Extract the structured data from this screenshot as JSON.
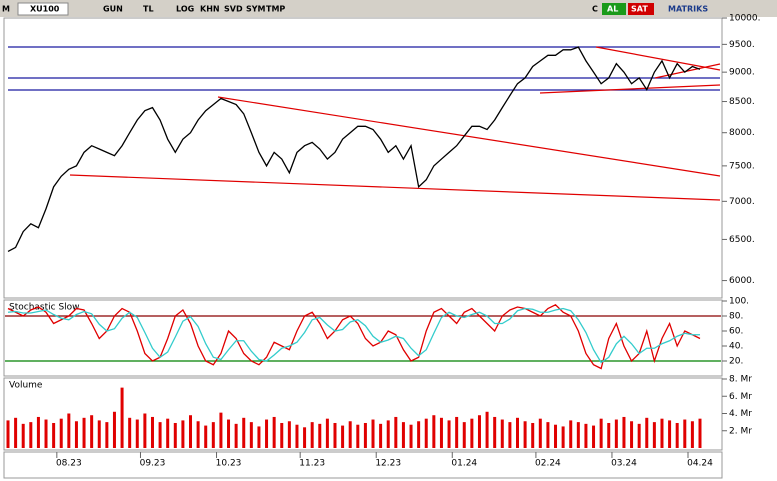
{
  "toolbar": {
    "items": [
      "M",
      "XU100",
      "GUN",
      "TL",
      "LOG",
      "KHN",
      "SVD",
      "SYM",
      "TMP",
      "C",
      "AL",
      "SAT",
      "MATRIKS"
    ]
  },
  "chart_data": [
    {
      "type": "line",
      "log_scale": true,
      "color": "#000000",
      "categories": [
        null,
        null,
        null,
        null,
        null,
        null,
        null,
        null,
        "08.23",
        null,
        null,
        null,
        null,
        null,
        null,
        null,
        null,
        null,
        null,
        "09.23",
        null,
        null,
        null,
        null,
        null,
        null,
        null,
        null,
        null,
        "10.23",
        null,
        null,
        null,
        null,
        null,
        null,
        null,
        null,
        null,
        null,
        "11.23",
        null,
        null,
        null,
        null,
        null,
        null,
        null,
        null,
        null,
        "12.23",
        null,
        null,
        null,
        null,
        null,
        null,
        null,
        null,
        null,
        "01.24",
        null,
        null,
        null,
        null,
        null,
        null,
        null,
        null,
        null,
        null,
        "02.24",
        null,
        null,
        null,
        null,
        null,
        null,
        null,
        null,
        null,
        "03.24",
        null,
        null,
        null,
        null,
        null,
        null,
        null,
        null,
        null,
        "04.24"
      ],
      "values": [
        6350,
        6400,
        6600,
        6700,
        6650,
        6900,
        7200,
        7350,
        7450,
        7500,
        7700,
        7800,
        7750,
        7700,
        7650,
        7800,
        8000,
        8200,
        8350,
        8400,
        8200,
        7900,
        7700,
        7900,
        8000,
        8200,
        8350,
        8450,
        8550,
        8500,
        8450,
        8300,
        8000,
        7700,
        7500,
        7700,
        7600,
        7400,
        7700,
        7800,
        7850,
        7750,
        7600,
        7700,
        7900,
        8000,
        8100,
        8100,
        8050,
        7900,
        7700,
        7800,
        7600,
        7800,
        7200,
        7300,
        7500,
        7600,
        7700,
        7800,
        7950,
        8100,
        8100,
        8050,
        8200,
        8400,
        8600,
        8800,
        8900,
        9100,
        9200,
        9300,
        9300,
        9400,
        9400,
        9450,
        9200,
        9000,
        8800,
        8900,
        9150,
        9000,
        8800,
        8900,
        8700,
        9000,
        9200,
        8900,
        9150,
        9000,
        9100,
        9050
      ],
      "ylim": [
        5800,
        10000
      ],
      "yticks": [
        {
          "value": 6000,
          "label": "6000."
        },
        {
          "value": 6500,
          "label": "6500."
        },
        {
          "value": 7000,
          "label": "7000."
        },
        {
          "value": 7500,
          "label": "7500."
        },
        {
          "value": 8000,
          "label": "8000."
        },
        {
          "value": 8500,
          "label": "8500."
        },
        {
          "value": 9000,
          "label": "9000."
        },
        {
          "value": 9500,
          "label": "9500."
        },
        {
          "value": 10000,
          "label": "10000."
        }
      ]
    },
    {
      "type": "line",
      "title": "Stochastic Slow",
      "series": [
        {
          "color": "#e00000",
          "values": [
            90,
            85,
            80,
            88,
            92,
            85,
            70,
            75,
            80,
            90,
            88,
            70,
            50,
            60,
            80,
            90,
            85,
            60,
            30,
            20,
            25,
            50,
            80,
            88,
            70,
            40,
            20,
            15,
            30,
            60,
            50,
            30,
            20,
            15,
            25,
            45,
            40,
            35,
            60,
            80,
            85,
            70,
            50,
            60,
            75,
            80,
            70,
            50,
            40,
            45,
            60,
            55,
            35,
            20,
            25,
            60,
            85,
            90,
            80,
            70,
            85,
            90,
            80,
            70,
            60,
            80,
            88,
            92,
            90,
            85,
            80,
            90,
            95,
            85,
            80,
            60,
            30,
            15,
            10,
            50,
            70,
            40,
            20,
            30,
            60,
            20,
            50,
            70,
            40,
            60,
            55,
            50
          ]
        },
        {
          "color": "#33cccc",
          "values": [
            85,
            86,
            84,
            84,
            86,
            88,
            82,
            77,
            75,
            82,
            86,
            83,
            69,
            60,
            63,
            77,
            85,
            78,
            58,
            37,
            25,
            32,
            52,
            73,
            79,
            66,
            43,
            25,
            22,
            35,
            47,
            47,
            33,
            22,
            20,
            28,
            37,
            40,
            45,
            58,
            75,
            78,
            68,
            60,
            62,
            72,
            75,
            67,
            53,
            45,
            48,
            53,
            50,
            37,
            27,
            35,
            57,
            78,
            85,
            80,
            78,
            82,
            85,
            80,
            70,
            70,
            76,
            87,
            90,
            89,
            85,
            85,
            88,
            90,
            87,
            75,
            58,
            35,
            18,
            25,
            43,
            53,
            43,
            30,
            37,
            37,
            43,
            47,
            53,
            57,
            55,
            55
          ]
        }
      ],
      "hlines": [
        {
          "value": 80,
          "color": "#8b0000"
        },
        {
          "value": 20,
          "color": "#008000"
        }
      ],
      "ylim": [
        0,
        100
      ],
      "yticks": [
        {
          "value": 20,
          "label": "20."
        },
        {
          "value": 40,
          "label": "40."
        },
        {
          "value": 60,
          "label": "60."
        },
        {
          "value": 80,
          "label": "80."
        },
        {
          "value": 100,
          "label": "100."
        }
      ]
    },
    {
      "type": "bar",
      "title": "Volume",
      "color": "#e00000",
      "values": [
        3.2,
        3.5,
        2.8,
        3.0,
        3.6,
        3.3,
        2.9,
        3.4,
        4.0,
        3.1,
        3.5,
        3.8,
        3.2,
        3.0,
        4.2,
        7.0,
        3.5,
        3.3,
        4.0,
        3.6,
        3.0,
        3.4,
        2.9,
        3.2,
        3.8,
        3.1,
        2.6,
        3.0,
        4.1,
        3.3,
        2.8,
        3.5,
        3.0,
        2.5,
        3.3,
        3.6,
        2.9,
        3.1,
        2.7,
        2.4,
        3.0,
        2.8,
        3.4,
        2.9,
        2.6,
        3.1,
        2.7,
        2.9,
        3.3,
        2.8,
        3.2,
        3.6,
        3.0,
        2.7,
        3.1,
        3.4,
        3.8,
        3.5,
        3.2,
        3.6,
        3.0,
        3.4,
        3.8,
        4.2,
        3.6,
        3.3,
        3.0,
        3.5,
        3.1,
        2.9,
        3.4,
        3.0,
        2.7,
        2.5,
        3.2,
        3.0,
        2.8,
        2.6,
        3.4,
        2.9,
        3.3,
        3.6,
        3.1,
        2.8,
        3.5,
        3.0,
        3.4,
        3.2,
        2.9,
        3.3,
        3.1,
        3.4
      ],
      "ylim": [
        0,
        8
      ],
      "yticks": [
        {
          "value": 2,
          "label": "2. Mr"
        },
        {
          "value": 4,
          "label": "4. Mr"
        },
        {
          "value": 6,
          "label": "6. Mr"
        },
        {
          "value": 8,
          "label": "8. Mr"
        }
      ]
    }
  ]
}
